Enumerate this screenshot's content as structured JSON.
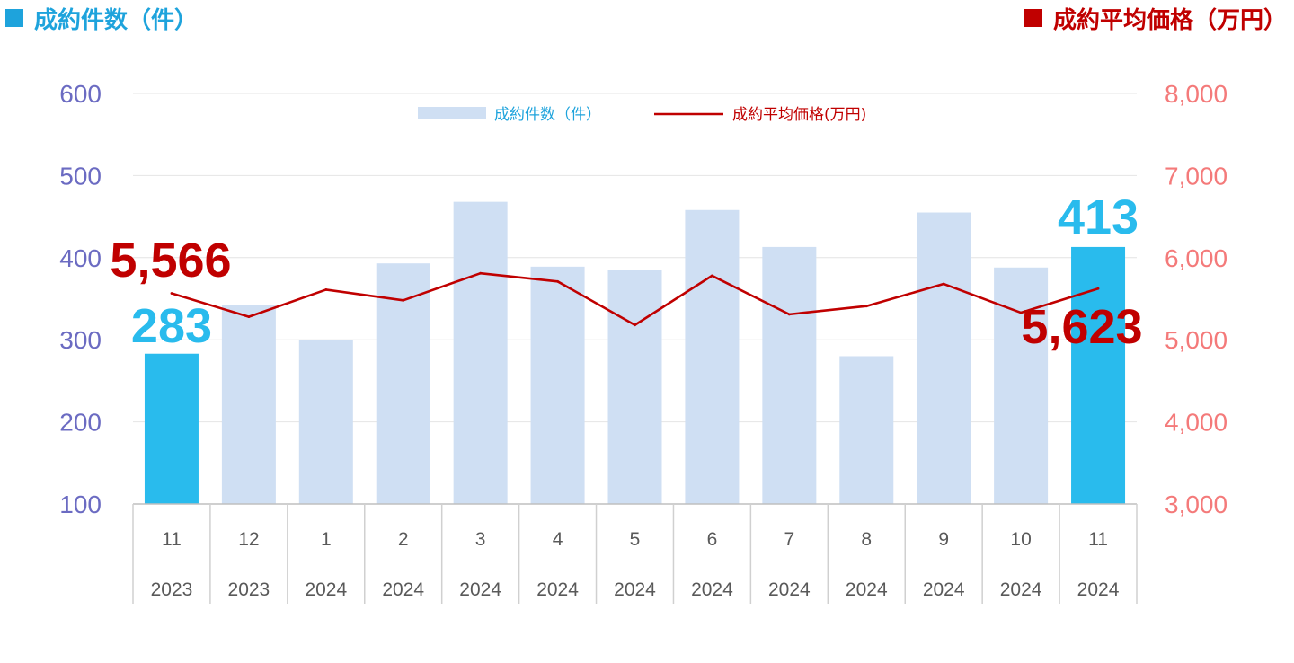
{
  "header": {
    "left_label": "成約件数（件）",
    "right_label": "成約平均価格（万円）"
  },
  "colors": {
    "bar_normal": "#cfdff3",
    "bar_highlight": "#29bbed",
    "line": "#c00000",
    "left_axis": "#6b6bc2",
    "right_axis": "#f47a7a",
    "header_left": "#1ea3dc",
    "header_right": "#c00000"
  },
  "chart_data": {
    "type": "bar",
    "categories": [
      "11",
      "12",
      "1",
      "2",
      "3",
      "4",
      "5",
      "6",
      "7",
      "8",
      "9",
      "10",
      "11"
    ],
    "years": [
      "2023",
      "2023",
      "2024",
      "2024",
      "2024",
      "2024",
      "2024",
      "2024",
      "2024",
      "2024",
      "2024",
      "2024",
      "2024"
    ],
    "series": [
      {
        "name": "成約件数（件）",
        "type": "bar",
        "axis": "left",
        "values": [
          283,
          342,
          300,
          393,
          468,
          389,
          385,
          458,
          413,
          280,
          455,
          388,
          413
        ],
        "highlight": [
          0,
          12
        ]
      },
      {
        "name": "成約平均価格(万円)",
        "type": "line",
        "axis": "right",
        "values": [
          5566,
          5280,
          5610,
          5480,
          5810,
          5710,
          5180,
          5780,
          5310,
          5410,
          5680,
          5330,
          5623
        ]
      }
    ],
    "left_axis": {
      "ylim": [
        100,
        600
      ],
      "ticks": [
        "100",
        "200",
        "300",
        "400",
        "500",
        "600"
      ]
    },
    "right_axis": {
      "ylim": [
        3000,
        8000
      ],
      "ticks": [
        "3,000",
        "4,000",
        "5,000",
        "6,000",
        "7,000",
        "8,000"
      ]
    },
    "data_labels": [
      {
        "series": 0,
        "index": 0,
        "text": "283"
      },
      {
        "series": 0,
        "index": 12,
        "text": "413"
      },
      {
        "series": 1,
        "index": 0,
        "text": "5,566"
      },
      {
        "series": 1,
        "index": 12,
        "text": "5,623"
      }
    ],
    "legend": {
      "position": "top-center"
    },
    "grid": true
  }
}
